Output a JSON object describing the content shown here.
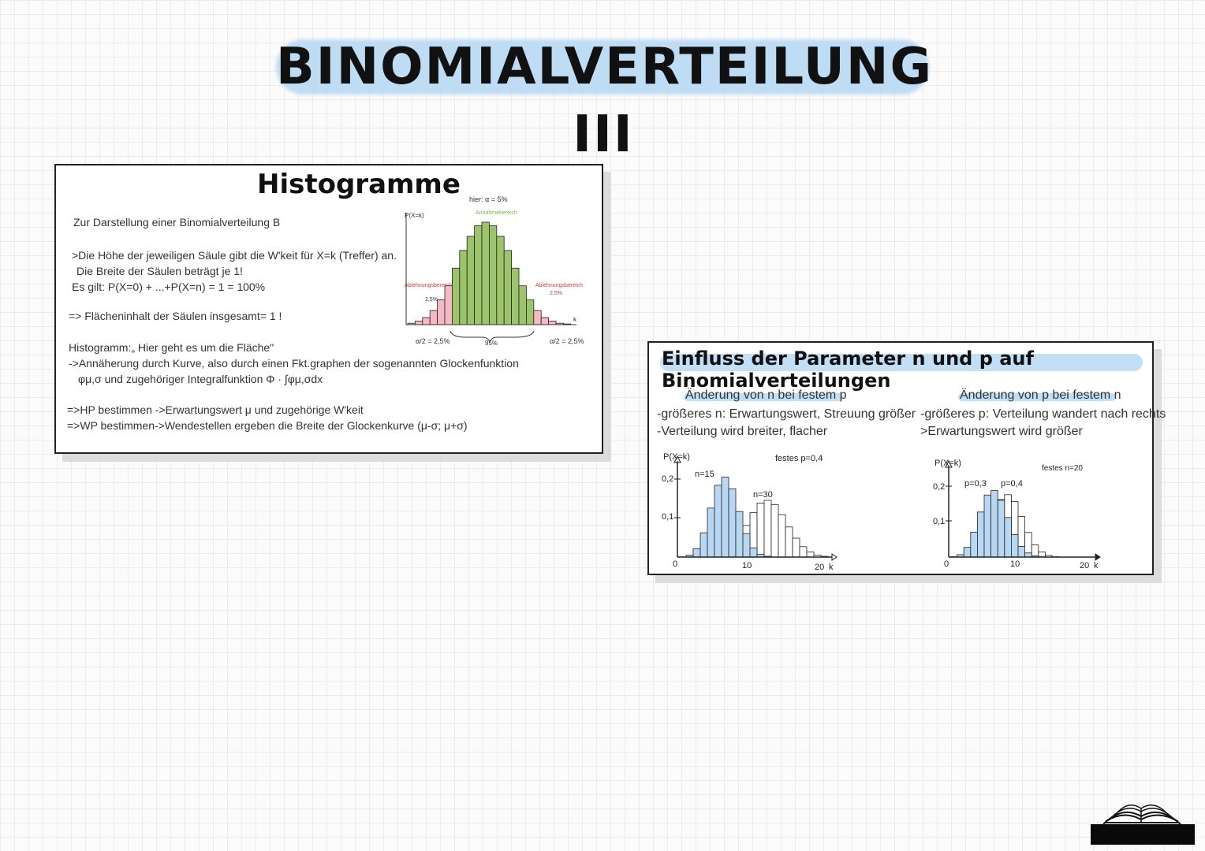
{
  "title": "BINOMIALVERTEILUNG III",
  "histogramme": {
    "title": "Histogramme",
    "lines": [
      "Zur Darstellung einer Binomialverteilung B",
      ">Die Höhe der jeweiligen Säule gibt die W'keit für X=k (Treffer) an.",
      "Die Breite der Säulen beträgt je 1!",
      "Es gilt: P(X=0) + ...+P(X=n) = 1 = 100%",
      "=> Flächeninhalt der Säulen insgesamt= 1 !",
      "Histogramm:„ Hier geht es um die Fläche\"",
      "->Annäherung durch Kurve, also durch einen Fkt.graphen der sogenannten Glockenfunktion",
      "φμ,σ und zugehöriger Integralfunktion  Φ · ∫φμ,σdx",
      "=>HP bestimmen ->Erwartungswert μ und zugehörige W'keit",
      "=>WP bestimmen->Wendestellen ergeben die Breite der Glockenkurve (μ-σ; μ+σ)"
    ]
  },
  "einfluss": {
    "title": "Einfluss der Parameter n und p auf Binomialverteilungen",
    "left_heading": "Änderung von n bei festem p",
    "left_lines": [
      "-größeres n: Erwartungswert, Streuung größer",
      "-Verteilung wird breiter, flacher"
    ],
    "right_heading": "Änderung von p bei festem n",
    "right_lines": [
      "-größeres p: Verteilung wandert nach rechts",
      ">Erwartungswert wird größer"
    ]
  },
  "chart_data": [
    {
      "type": "bar",
      "title": "",
      "ylabel": "P(X=k)",
      "xlabel": "k",
      "note": "hier: α = 5%",
      "annotations": [
        "Annahmebereich",
        "Ablehnungsbereich",
        "2,5%",
        "Ablehnungsbereich",
        "2,5%",
        "α/2 = 2,5%",
        "95%",
        "α/2 = 2,5%"
      ],
      "categories": [
        0,
        1,
        2,
        3,
        4,
        5,
        6,
        7,
        8,
        9,
        10,
        11,
        12,
        13,
        14,
        15,
        16,
        17,
        18,
        19,
        20,
        21
      ],
      "values": [
        0.002,
        0.005,
        0.01,
        0.02,
        0.035,
        0.055,
        0.08,
        0.105,
        0.125,
        0.14,
        0.145,
        0.14,
        0.125,
        0.105,
        0.08,
        0.055,
        0.035,
        0.02,
        0.01,
        0.005,
        0.002,
        0.001
      ],
      "region_colors": {
        "reject": "#f6b8c3",
        "accept": "#9cc46a"
      }
    },
    {
      "type": "bar",
      "title": "",
      "ylabel": "P(X=k)",
      "xlabel": "k",
      "note": "festes p=0,4",
      "x_ticks": [
        "0",
        "10",
        "20"
      ],
      "y_ticks": [
        "0,1",
        "0,2"
      ],
      "ylim": [
        0,
        0.23
      ],
      "categories": [
        0,
        1,
        2,
        3,
        4,
        5,
        6,
        7,
        8,
        9,
        10,
        11,
        12,
        13,
        14,
        15,
        16,
        17,
        18,
        19,
        20
      ],
      "series": [
        {
          "name": "n=15",
          "values": [
            0.0005,
            0.005,
            0.022,
            0.063,
            0.127,
            0.186,
            0.207,
            0.177,
            0.118,
            0.061,
            0.024,
            0.007,
            0.002,
            0.0,
            0.0,
            0.0,
            0.0,
            0.0,
            0.0,
            0.0,
            0.0
          ],
          "color": "#b7d7f2"
        },
        {
          "name": "n=30",
          "values": [
            0.0,
            0.0,
            0.0,
            0.0,
            0.0,
            0.0,
            0.011,
            0.025,
            0.05,
            0.082,
            0.115,
            0.14,
            0.147,
            0.136,
            0.11,
            0.078,
            0.049,
            0.027,
            0.013,
            0.005,
            0.002
          ],
          "color": "#ffffff"
        }
      ]
    },
    {
      "type": "bar",
      "title": "",
      "ylabel": "P(X=k)",
      "xlabel": "k",
      "note": "festes n=20",
      "x_ticks": [
        "0",
        "10",
        "20"
      ],
      "y_ticks": [
        "0,1",
        "0,2"
      ],
      "ylim": [
        0,
        0.23
      ],
      "categories": [
        0,
        1,
        2,
        3,
        4,
        5,
        6,
        7,
        8,
        9,
        10,
        11,
        12,
        13,
        14,
        15,
        16,
        17,
        18,
        19,
        20
      ],
      "series": [
        {
          "name": "p=0,3",
          "values": [
            0.001,
            0.007,
            0.028,
            0.072,
            0.13,
            0.179,
            0.192,
            0.164,
            0.114,
            0.065,
            0.031,
            0.012,
            0.004,
            0.001,
            0.0,
            0.0,
            0.0,
            0.0,
            0.0,
            0.0,
            0.0
          ],
          "color": "#b7d7f2"
        },
        {
          "name": "p=0,4",
          "values": [
            0.0,
            0.0,
            0.003,
            0.012,
            0.035,
            0.075,
            0.124,
            0.166,
            0.18,
            0.16,
            0.117,
            0.071,
            0.035,
            0.015,
            0.005,
            0.001,
            0.0,
            0.0,
            0.0,
            0.0,
            0.0
          ],
          "color": "#ffffff"
        }
      ]
    }
  ]
}
